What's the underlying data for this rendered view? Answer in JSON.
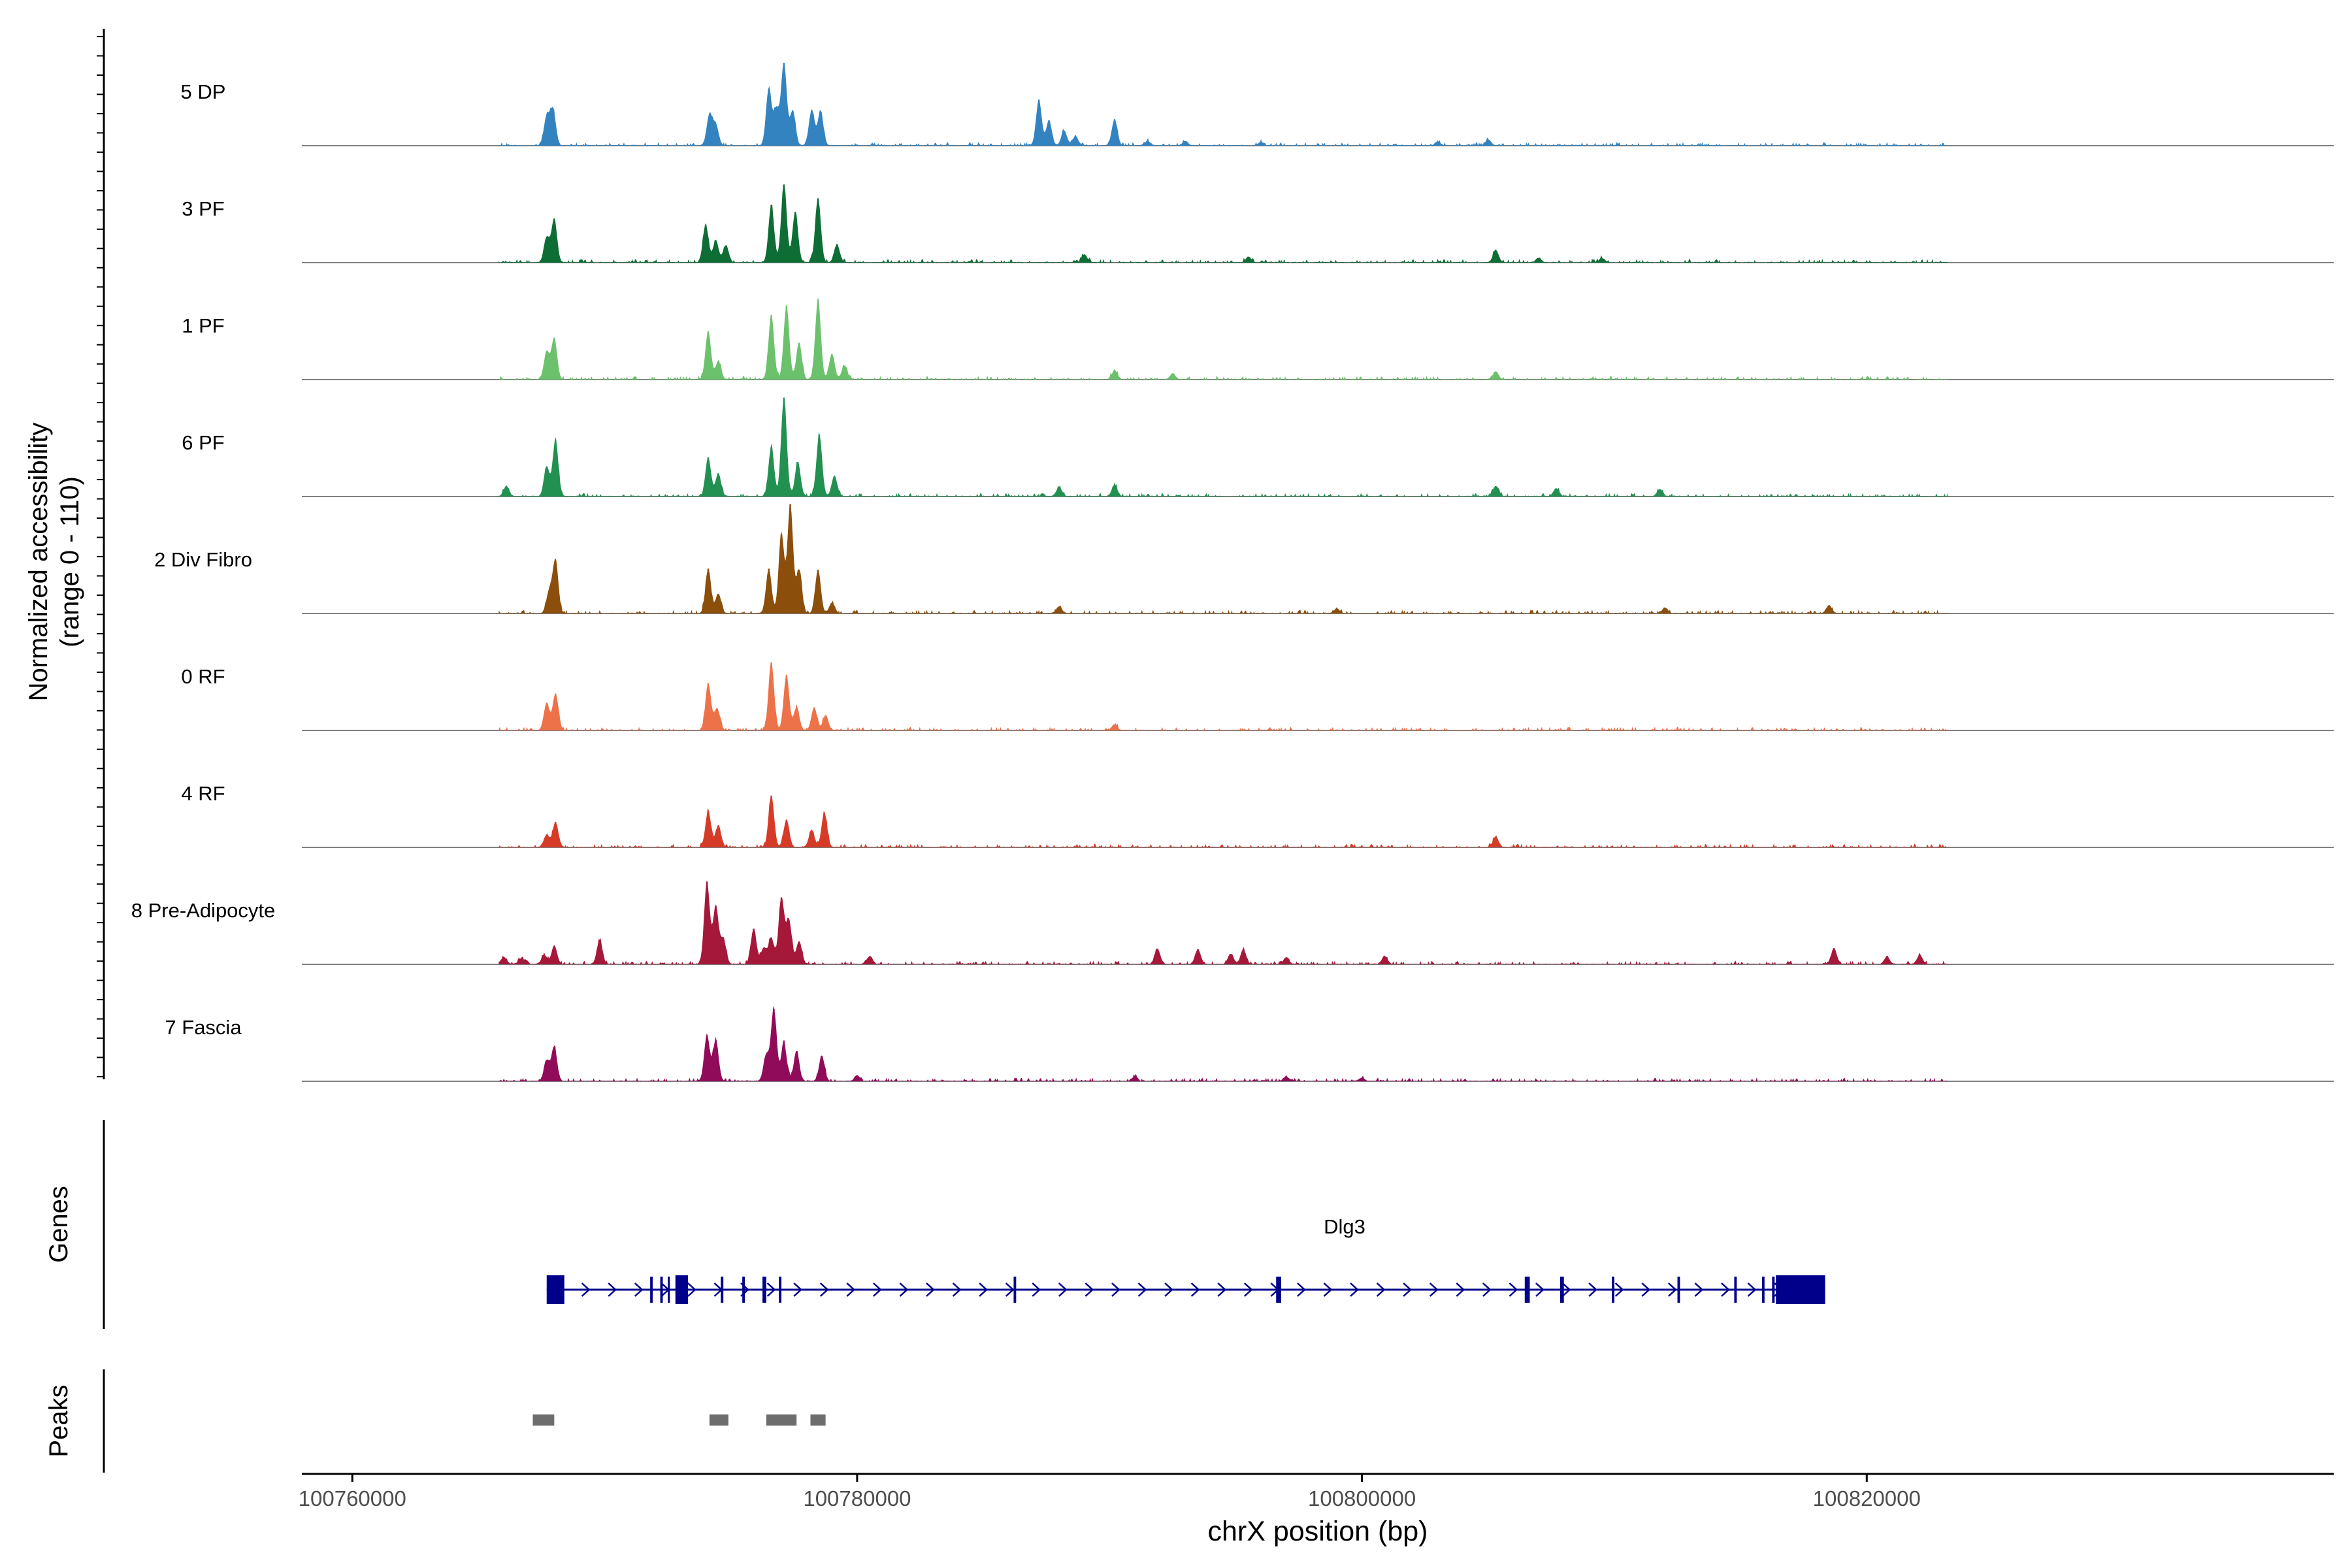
{
  "chart_data": {
    "type": "area",
    "title": "",
    "ylabel": [
      "Normalized accessibility",
      "(range 0 - 110)"
    ],
    "ylim": [
      0,
      110
    ],
    "xlabel": "chrX position (bp)",
    "xlim": [
      100758000,
      100838500
    ],
    "xticks": [
      100760000,
      100780000,
      100800000,
      100820000
    ],
    "xtick_labels": [
      "100760000",
      "100780000",
      "100800000",
      "100820000"
    ],
    "baseline_color": "#808080",
    "tracks": [
      {
        "name": "5 DP",
        "color": "#3383c0",
        "peaks": [
          [
            100767700,
            25
          ],
          [
            100767950,
            31
          ],
          [
            100774150,
            27
          ],
          [
            100774400,
            18
          ],
          [
            100776500,
            49
          ],
          [
            100776800,
            31
          ],
          [
            100777100,
            72
          ],
          [
            100777450,
            30
          ],
          [
            100778200,
            31
          ],
          [
            100778550,
            30
          ],
          [
            100787200,
            40
          ],
          [
            100787600,
            22
          ],
          [
            100788200,
            13
          ],
          [
            100788650,
            8
          ],
          [
            100790200,
            23
          ],
          [
            100791500,
            4
          ],
          [
            100793000,
            4
          ],
          [
            100796000,
            3
          ],
          [
            100803000,
            3
          ],
          [
            100805000,
            5
          ]
        ]
      },
      {
        "name": "3 PF",
        "color": "#0e6d34",
        "peaks": [
          [
            100767700,
            22
          ],
          [
            100768000,
            38
          ],
          [
            100774000,
            33
          ],
          [
            100774400,
            19
          ],
          [
            100774800,
            15
          ],
          [
            100776600,
            50
          ],
          [
            100777100,
            68
          ],
          [
            100777550,
            44
          ],
          [
            100778450,
            56
          ],
          [
            100779200,
            16
          ],
          [
            100789000,
            7
          ],
          [
            100795500,
            5
          ],
          [
            100805300,
            11
          ],
          [
            100807000,
            4
          ],
          [
            100809500,
            4
          ]
        ]
      },
      {
        "name": "1 PF",
        "color": "#6cc16d",
        "peaks": [
          [
            100767700,
            24
          ],
          [
            100768000,
            36
          ],
          [
            100774100,
            42
          ],
          [
            100774500,
            16
          ],
          [
            100776600,
            56
          ],
          [
            100777200,
            64
          ],
          [
            100777700,
            32
          ],
          [
            100778450,
            69
          ],
          [
            100779000,
            22
          ],
          [
            100779500,
            12
          ],
          [
            100790200,
            8
          ],
          [
            100792500,
            5
          ],
          [
            100805300,
            7
          ]
        ]
      },
      {
        "name": "6 PF",
        "color": "#229051",
        "peaks": [
          [
            100766100,
            9
          ],
          [
            100767700,
            26
          ],
          [
            100768050,
            49
          ],
          [
            100774100,
            34
          ],
          [
            100774500,
            20
          ],
          [
            100776600,
            43
          ],
          [
            100777100,
            86
          ],
          [
            100777650,
            30
          ],
          [
            100778500,
            54
          ],
          [
            100779100,
            18
          ],
          [
            100788000,
            8
          ],
          [
            100790200,
            10
          ],
          [
            100805300,
            9
          ],
          [
            100807700,
            7
          ],
          [
            100811800,
            6
          ]
        ]
      },
      {
        "name": "2 Div Fibro",
        "color": "#8c4e0b",
        "peaks": [
          [
            100767800,
            19
          ],
          [
            100768050,
            46
          ],
          [
            100774100,
            39
          ],
          [
            100774500,
            17
          ],
          [
            100776500,
            39
          ],
          [
            100777000,
            69
          ],
          [
            100777350,
            95
          ],
          [
            100777700,
            38
          ],
          [
            100778450,
            38
          ],
          [
            100779000,
            9
          ],
          [
            100788000,
            6
          ],
          [
            100799000,
            4
          ],
          [
            100812000,
            5
          ],
          [
            100818500,
            7
          ]
        ]
      },
      {
        "name": "0 RF",
        "color": "#ed7149",
        "peaks": [
          [
            100767700,
            24
          ],
          [
            100768050,
            32
          ],
          [
            100774100,
            41
          ],
          [
            100774450,
            19
          ],
          [
            100776600,
            59
          ],
          [
            100777200,
            48
          ],
          [
            100777600,
            20
          ],
          [
            100778300,
            20
          ],
          [
            100778750,
            13
          ],
          [
            100790200,
            5
          ]
        ]
      },
      {
        "name": "4 RF",
        "color": "#d63b28",
        "peaks": [
          [
            100767700,
            11
          ],
          [
            100768050,
            22
          ],
          [
            100774100,
            32
          ],
          [
            100774500,
            19
          ],
          [
            100776600,
            45
          ],
          [
            100777200,
            24
          ],
          [
            100778200,
            15
          ],
          [
            100778700,
            30
          ],
          [
            100805300,
            9
          ]
        ]
      },
      {
        "name": "8 Pre-Adipocyte",
        "color": "#a5183a",
        "peaks": [
          [
            100766000,
            6
          ],
          [
            100766700,
            5
          ],
          [
            100767600,
            8
          ],
          [
            100768000,
            16
          ],
          [
            100769800,
            21
          ],
          [
            100774050,
            72
          ],
          [
            100774400,
            51
          ],
          [
            100774700,
            22
          ],
          [
            100775900,
            31
          ],
          [
            100776300,
            14
          ],
          [
            100776600,
            23
          ],
          [
            100777000,
            58
          ],
          [
            100777300,
            38
          ],
          [
            100777700,
            20
          ],
          [
            100780500,
            7
          ],
          [
            100791900,
            13
          ],
          [
            100793500,
            13
          ],
          [
            100794800,
            9
          ],
          [
            100795300,
            13
          ],
          [
            100797000,
            6
          ],
          [
            100800900,
            7
          ],
          [
            100818700,
            14
          ],
          [
            100820800,
            6
          ],
          [
            100822100,
            8
          ]
        ]
      },
      {
        "name": "7 Fascia",
        "color": "#900b59",
        "peaks": [
          [
            100767700,
            18
          ],
          [
            100768000,
            30
          ],
          [
            100774050,
            40
          ],
          [
            100774400,
            36
          ],
          [
            100776400,
            23
          ],
          [
            100776700,
            63
          ],
          [
            100777100,
            33
          ],
          [
            100777600,
            26
          ],
          [
            100778600,
            22
          ],
          [
            100780000,
            5
          ],
          [
            100791000,
            4
          ],
          [
            100797000,
            4
          ],
          [
            100800000,
            3
          ]
        ]
      }
    ],
    "genes_label": "Genes",
    "gene": {
      "name": "Dlg3",
      "color": "#00008b",
      "start": 100767700,
      "end": 100818350,
      "exons": [
        [
          100767700,
          100768400
        ],
        [
          100771800,
          100771900
        ],
        [
          100772200,
          100772300
        ],
        [
          100772500,
          100772580
        ],
        [
          100772800,
          100773300
        ],
        [
          100774600,
          100774700
        ],
        [
          100775450,
          100775550
        ],
        [
          100776250,
          100776400
        ],
        [
          100776900,
          100777000
        ],
        [
          100786200,
          100786300
        ],
        [
          100796600,
          100796800
        ],
        [
          100806450,
          100806650
        ],
        [
          100807850,
          100808000
        ],
        [
          100809900,
          100810000
        ],
        [
          100812500,
          100812600
        ],
        [
          100814750,
          100814850
        ],
        [
          100815850,
          100815950
        ],
        [
          100816250,
          100816350
        ],
        [
          100816400,
          100818350
        ]
      ]
    },
    "peaks_label": "Peaks",
    "peak_regions": [
      [
        100767150,
        100768000
      ],
      [
        100774150,
        100774900
      ],
      [
        100776400,
        100777600
      ],
      [
        100778150,
        100778750
      ]
    ]
  }
}
